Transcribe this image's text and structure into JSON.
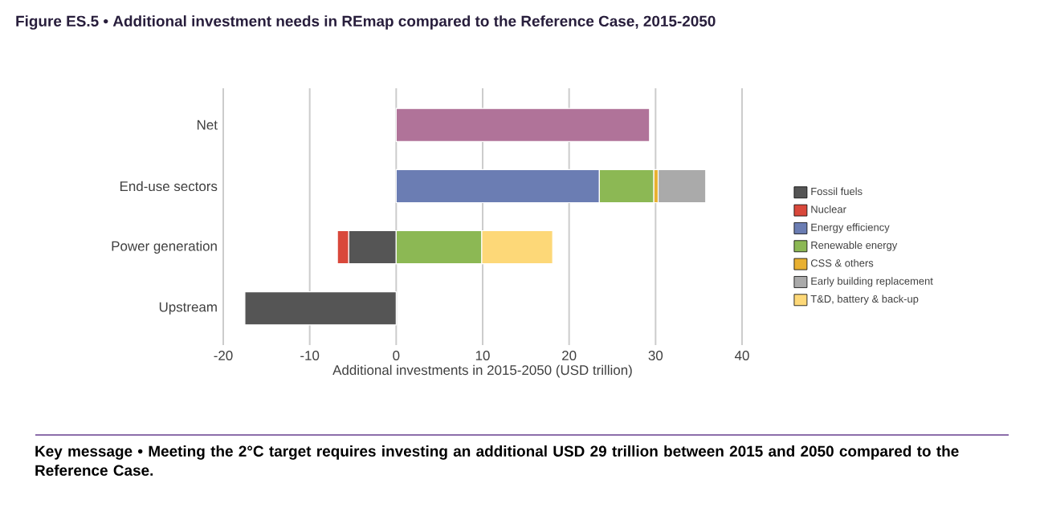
{
  "chart_data": {
    "type": "bar",
    "orientation": "horizontal",
    "stacked": true,
    "title": "Figure ES.5 • Additional investment needs in REmap compared to the Reference Case, 2015-2050",
    "xlabel": "Additional investments in 2015-2050 (USD trillion)",
    "annotations": [
      "Key message • Meeting the 2°C target requires investing an additional USD 29 trillion between 2015 and 2050 compared to the Reference Case."
    ],
    "categories": [
      "Net",
      "End-use sectors",
      "Power generation",
      "Upstream"
    ],
    "series": [
      {
        "color": "#b07399",
        "values": [
          29.3,
          null,
          null,
          null
        ]
      },
      {
        "name": "Fossil fuels",
        "color": "#555555",
        "values": [
          null,
          null,
          -5.5,
          -17.5
        ]
      },
      {
        "name": "Nuclear",
        "color": "#d9483b",
        "values": [
          null,
          null,
          -1.3,
          null
        ]
      },
      {
        "name": "Energy efficiency",
        "color": "#6b7db3",
        "values": [
          null,
          23.5,
          null,
          null
        ]
      },
      {
        "name": "Renewable energy",
        "color": "#8cb854",
        "values": [
          null,
          6.3,
          9.9,
          null
        ]
      },
      {
        "name": "CSS & others",
        "color": "#e8b031",
        "values": [
          null,
          0.5,
          null,
          null
        ]
      },
      {
        "name": "Early building replacement",
        "color": "#aaaaaa",
        "values": [
          null,
          5.5,
          null,
          null
        ]
      },
      {
        "name": "T&D, battery & back-up",
        "color": "#fdd878",
        "values": [
          null,
          null,
          8.2,
          null
        ]
      }
    ],
    "xlim": [
      -20,
      40
    ],
    "xticks": [
      -20,
      -10,
      0,
      10,
      20,
      30,
      40
    ],
    "grid": "x",
    "legend": "right"
  }
}
